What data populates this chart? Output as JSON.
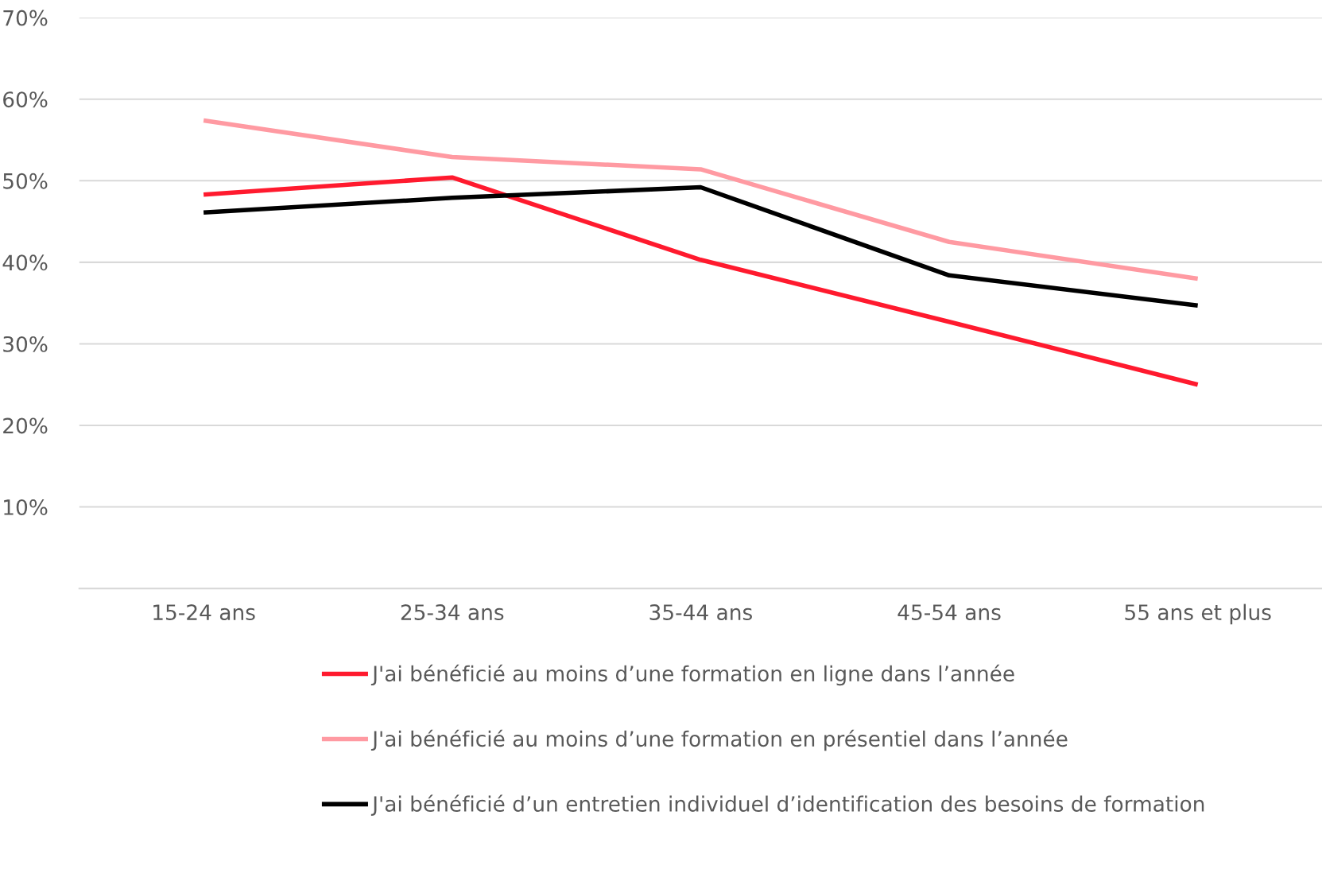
{
  "chart_data": {
    "type": "line",
    "categories": [
      "15-24 ans",
      "25-34 ans",
      "35-44 ans",
      "45-54 ans",
      "55 ans et plus"
    ],
    "series": [
      {
        "name": "J'ai bénéficié au moins d’une formation en ligne dans l’année",
        "color": "#ff1a2e",
        "values": [
          48.3,
          50.4,
          40.3,
          32.7,
          25.0
        ]
      },
      {
        "name": "J'ai bénéficié au moins d’une formation en présentiel dans l’année",
        "color": "#ff9aa2",
        "values": [
          57.4,
          52.9,
          51.4,
          42.5,
          38.0
        ]
      },
      {
        "name": "J'ai bénéficié d’un entretien individuel d’identification des besoins de formation",
        "color": "#000000",
        "values": [
          46.1,
          47.9,
          49.2,
          38.4,
          34.7
        ]
      }
    ],
    "ylim": [
      0,
      70
    ],
    "yticks": [
      {
        "value": 0,
        "label": null
      },
      {
        "value": 10,
        "label": "10%"
      },
      {
        "value": 20,
        "label": "20%"
      },
      {
        "value": 30,
        "label": "30%"
      },
      {
        "value": 40,
        "label": "40%"
      },
      {
        "value": 50,
        "label": "50%"
      },
      {
        "value": 60,
        "label": "60%"
      },
      {
        "value": 70,
        "label": "70%"
      }
    ],
    "grid": "y",
    "legend": "bottom",
    "marker": "none",
    "line_style": "solid"
  }
}
